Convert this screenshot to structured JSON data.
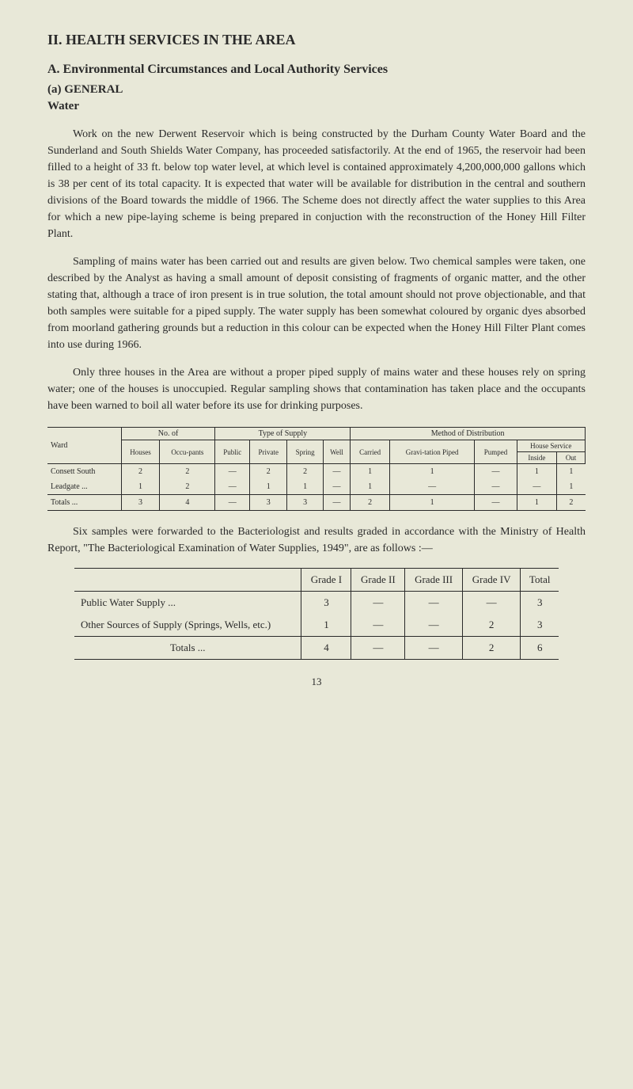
{
  "section": {
    "title": "II. HEALTH SERVICES IN THE AREA",
    "subsection": "A. Environmental Circumstances and Local Authority Services",
    "subsub": "(a) GENERAL",
    "subheading": "Water"
  },
  "paragraphs": {
    "p1": "Work on the new Derwent Reservoir which is being constructed by the Durham County Water Board and the Sunderland and South Shields Water Company, has proceeded satisfactorily. At the end of 1965, the reservoir had been filled to a height of 33 ft. below top water level, at which level is contained approximately 4,200,000,000 gallons which is 38 per cent of its total capacity. It is expected that water will be available for distribution in the central and southern divisions of the Board towards the middle of 1966. The Scheme does not directly affect the water supplies to this Area for which a new pipe-laying scheme is being prepared in conjuction with the reconstruction of the Honey Hill Filter Plant.",
    "p2": "Sampling of mains water has been carried out and results are given below. Two chemical samples were taken, one described by the Analyst as having a small amount of deposit consisting of fragments of organic matter, and the other stating that, although a trace of iron present is in true solution, the total amount should not prove objectionable, and that both samples were suitable for a piped supply. The water supply has been somewhat coloured by organic dyes absorbed from moorland gathering grounds but a reduction in this colour can be expected when the Honey Hill Filter Plant comes into use during 1966.",
    "p3": "Only three houses in the Area are without a proper piped supply of mains water and these houses rely on spring water; one of the houses is unoccupied. Regular sampling shows that contamination has taken place and the occupants have been warned to boil all water before its use for drinking purposes.",
    "p4": "Six samples were forwarded to the Bacteriologist and results graded in accordance with the Ministry of Health Report, \"The Bacteriological Examination of Water Supplies, 1949\", are as follows :—"
  },
  "table1": {
    "headers": {
      "ward": "Ward",
      "no_of": "No. of",
      "houses": "Houses",
      "occupants": "Occu-pants",
      "type_supply": "Type of Supply",
      "public": "Public",
      "private": "Private",
      "spring": "Spring",
      "well": "Well",
      "method_dist": "Method of Distribution",
      "carried": "Carried",
      "gravitation_piped": "Gravi-tation Piped",
      "pumped": "Pumped",
      "house_service": "House Service",
      "inside": "Inside",
      "out": "Out"
    },
    "rows": [
      {
        "ward": "Consett South",
        "houses": "2",
        "occupants": "2",
        "public": "—",
        "private": "2",
        "spring": "2",
        "well": "—",
        "carried": "1",
        "gravitation": "1",
        "pumped": "—",
        "inside": "1",
        "out": "1"
      },
      {
        "ward": "Leadgate ...",
        "houses": "1",
        "occupants": "2",
        "public": "—",
        "private": "1",
        "spring": "1",
        "well": "—",
        "carried": "1",
        "gravitation": "—",
        "pumped": "—",
        "inside": "—",
        "out": "1"
      }
    ],
    "totals": {
      "ward": "Totals ...",
      "houses": "3",
      "occupants": "4",
      "public": "—",
      "private": "3",
      "spring": "3",
      "well": "—",
      "carried": "2",
      "gravitation": "1",
      "pumped": "—",
      "inside": "1",
      "out": "2"
    }
  },
  "table2": {
    "headers": {
      "blank": "",
      "grade1": "Grade I",
      "grade2": "Grade II",
      "grade3": "Grade III",
      "grade4": "Grade IV",
      "total": "Total"
    },
    "rows": [
      {
        "label": "Public Water Supply ...",
        "g1": "3",
        "g2": "—",
        "g3": "—",
        "g4": "—",
        "total": "3"
      },
      {
        "label": "Other Sources of Supply (Springs, Wells, etc.)",
        "g1": "1",
        "g2": "—",
        "g3": "—",
        "g4": "2",
        "total": "3"
      }
    ],
    "totals": {
      "label": "Totals ...",
      "g1": "4",
      "g2": "—",
      "g3": "—",
      "g4": "2",
      "total": "6"
    }
  },
  "page_number": "13"
}
